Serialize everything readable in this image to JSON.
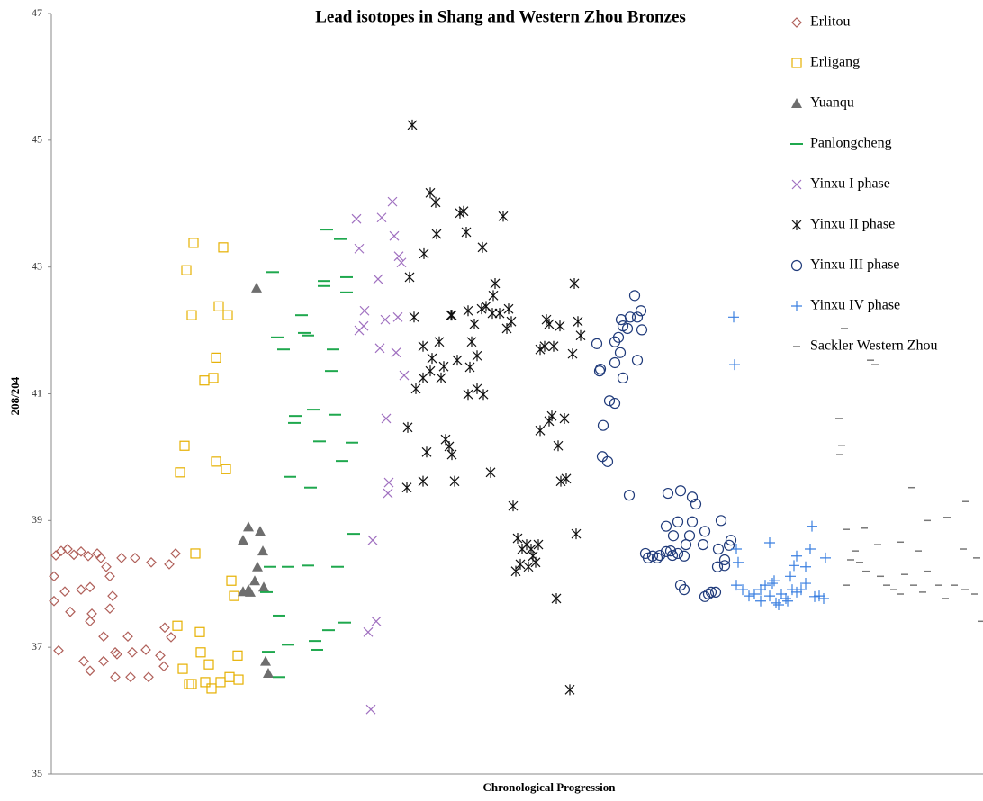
{
  "chart_data": {
    "type": "scatter",
    "title": "Lead isotopes in Shang  and Western Zhou  Bronzes",
    "x_label": "Chronological Progression",
    "y_label": "208/204",
    "xlim": [
      0,
      1035
    ],
    "ylim": [
      35,
      47
    ],
    "yticks": [
      35,
      37,
      39,
      41,
      43,
      45,
      47
    ],
    "grid": false,
    "legend": "upper right",
    "series": [
      {
        "name": "Erlitou",
        "color": "#b0605a",
        "marker": "diamond",
        "x": [
          5,
          11,
          18,
          25,
          33,
          41,
          51,
          55,
          61,
          65,
          78,
          93,
          111,
          131,
          138,
          3,
          15,
          33,
          43,
          45,
          43,
          68,
          65,
          21,
          3,
          8,
          36,
          58,
          73,
          85,
          71,
          90,
          105,
          121,
          126,
          133,
          58,
          71,
          88,
          108,
          125,
          43
        ],
        "values": [
          38.45,
          38.52,
          38.55,
          38.46,
          38.51,
          38.44,
          38.48,
          38.41,
          38.27,
          38.12,
          38.41,
          38.41,
          38.34,
          38.31,
          38.48,
          37.73,
          37.88,
          37.91,
          37.95,
          37.53,
          37.41,
          37.81,
          37.61,
          37.56,
          38.12,
          36.95,
          36.78,
          36.78,
          36.89,
          37.17,
          36.92,
          36.92,
          36.96,
          36.87,
          37.31,
          37.16,
          37.17,
          36.53,
          36.53,
          36.53,
          36.7,
          36.63
        ]
      },
      {
        "name": "Erligang",
        "color": "#e6b000",
        "marker": "square",
        "x": [
          158,
          150,
          191,
          156,
          186,
          196,
          183,
          170,
          180,
          148,
          143,
          183,
          194,
          160,
          200,
          203,
          140,
          165,
          166,
          146,
          153,
          156,
          175,
          178,
          171,
          188,
          198,
          207,
          208
        ],
        "values": [
          43.38,
          42.95,
          43.31,
          42.24,
          42.38,
          42.24,
          41.57,
          41.21,
          41.25,
          40.18,
          39.76,
          39.93,
          39.81,
          38.48,
          38.05,
          37.81,
          37.34,
          37.24,
          36.92,
          36.66,
          36.42,
          36.42,
          36.73,
          36.35,
          36.45,
          36.45,
          36.53,
          36.87,
          36.49
        ]
      },
      {
        "name": "Yuanqu",
        "color": "#6e6e6e",
        "marker": "triangle",
        "x": [
          228,
          232,
          219,
          213,
          235,
          229,
          226,
          219,
          236,
          213,
          221,
          238,
          241
        ],
        "values": [
          42.67,
          38.83,
          38.9,
          38.69,
          38.52,
          38.27,
          38.05,
          37.91,
          37.95,
          37.88,
          37.87,
          36.78,
          36.59
        ]
      },
      {
        "name": "Panlongcheng",
        "color": "#1fa84e",
        "marker": "dash",
        "x": [
          246,
          306,
          321,
          303,
          328,
          303,
          328,
          278,
          281,
          285,
          251,
          258,
          313,
          311,
          271,
          291,
          315,
          270,
          298,
          334,
          323,
          265,
          288,
          336,
          263,
          285,
          318,
          243,
          239,
          253,
          263,
          293,
          326,
          308,
          241,
          295,
          253
        ],
        "values": [
          42.92,
          43.59,
          43.44,
          42.78,
          42.84,
          42.7,
          42.6,
          42.24,
          41.96,
          41.92,
          41.89,
          41.7,
          41.7,
          41.36,
          40.65,
          40.75,
          40.67,
          40.54,
          40.25,
          40.23,
          39.94,
          39.69,
          39.52,
          38.79,
          38.27,
          38.29,
          38.27,
          38.27,
          37.87,
          37.5,
          37.04,
          37.1,
          37.39,
          37.27,
          36.93,
          36.96,
          36.53
        ]
      },
      {
        "name": "Yinxu I phase",
        "color": "#a070c0",
        "marker": "x",
        "x": [
          339,
          367,
          379,
          342,
          381,
          386,
          389,
          363,
          348,
          342,
          371,
          385,
          347,
          365,
          383,
          392,
          372,
          375,
          374,
          357,
          361,
          352,
          355
        ],
        "values": [
          43.76,
          43.78,
          44.03,
          43.29,
          43.49,
          43.17,
          43.07,
          42.81,
          42.31,
          42.0,
          42.17,
          42.21,
          42.07,
          41.72,
          41.65,
          41.29,
          40.61,
          39.6,
          39.43,
          38.69,
          37.41,
          37.24,
          36.02
        ]
      },
      {
        "name": "Yinxu II phase",
        "color": "#111111",
        "marker": "asterisk",
        "x": [
          401,
          421,
          427,
          458,
          454,
          428,
          461,
          502,
          479,
          414,
          398,
          493,
          403,
          444,
          413,
          423,
          431,
          413,
          405,
          421,
          433,
          445,
          463,
          478,
          483,
          491,
          490,
          498,
          508,
          470,
          451,
          465,
          473,
          467,
          473,
          463,
          436,
          396,
          417,
          438,
          442,
          445,
          413,
          448,
          488,
          395,
          513,
          518,
          523,
          528,
          533,
          538,
          521,
          516,
          530,
          535,
          541,
          553,
          550,
          565,
          558,
          548,
          543,
          579,
          585,
          588,
          581,
          556,
          553,
          570,
          543,
          563,
          566,
          572,
          583,
          561,
          576,
          506,
          511,
          480
        ],
        "values": [
          45.24,
          44.17,
          44.02,
          43.88,
          43.85,
          43.52,
          43.55,
          43.8,
          43.31,
          43.21,
          42.84,
          42.74,
          42.21,
          42.24,
          41.75,
          41.56,
          41.82,
          41.25,
          41.08,
          41.36,
          41.25,
          42.24,
          42.31,
          42.34,
          42.38,
          42.55,
          42.27,
          42.27,
          42.34,
          42.1,
          41.53,
          41.42,
          41.6,
          41.82,
          41.08,
          40.99,
          41.43,
          40.47,
          40.08,
          40.28,
          40.17,
          40.04,
          39.62,
          39.62,
          39.76,
          39.52,
          39.23,
          38.72,
          38.55,
          38.62,
          38.55,
          38.34,
          38.31,
          38.2,
          38.27,
          38.44,
          38.62,
          42.1,
          42.17,
          42.07,
          41.75,
          41.75,
          41.7,
          41.63,
          42.14,
          41.92,
          42.74,
          40.65,
          40.57,
          40.61,
          40.42,
          40.18,
          39.62,
          39.66,
          38.79,
          37.77,
          36.33,
          42.03,
          42.14,
          40.99
        ]
      },
      {
        "name": "Yinxu III phase",
        "color": "#1f3a7a",
        "marker": "circle",
        "x": [
          648,
          655,
          643,
          651,
          633,
          656,
          635,
          640,
          630,
          626,
          606,
          632,
          651,
          610,
          609,
          626,
          635,
          620,
          626,
          613,
          612,
          618,
          642,
          685,
          699,
          712,
          716,
          683,
          696,
          712,
          744,
          691,
          709,
          726,
          705,
          724,
          755,
          753,
          741,
          748,
          748,
          740,
          660,
          668,
          676,
          683,
          688,
          696,
          703,
          663,
          673,
          690,
          699,
          703,
          730,
          733,
          738,
          726
        ],
        "values": [
          42.55,
          42.31,
          42.21,
          42.21,
          42.17,
          42.01,
          42.07,
          42.03,
          41.89,
          41.82,
          41.79,
          41.65,
          41.53,
          41.39,
          41.36,
          41.49,
          41.25,
          40.89,
          40.85,
          40.5,
          40.01,
          39.93,
          39.4,
          39.43,
          39.47,
          39.37,
          39.26,
          38.91,
          38.98,
          38.98,
          39.0,
          38.76,
          38.76,
          38.83,
          38.62,
          38.62,
          38.69,
          38.61,
          38.55,
          38.38,
          38.29,
          38.27,
          38.48,
          38.44,
          38.45,
          38.51,
          38.52,
          38.48,
          38.44,
          38.41,
          38.41,
          38.45,
          37.98,
          37.91,
          37.84,
          37.87,
          37.87,
          37.8
        ]
      },
      {
        "name": "Yinxu IV phase",
        "color": "#3a7fe0",
        "marker": "plus",
        "x": [
          758,
          759,
          761,
          763,
          798,
          761,
          768,
          775,
          781,
          788,
          793,
          801,
          803,
          788,
          798,
          805,
          811,
          816,
          823,
          828,
          821,
          825,
          828,
          838,
          843,
          845,
          833,
          838,
          848,
          853,
          858,
          860,
          808,
          818
        ],
        "values": [
          42.21,
          41.46,
          38.55,
          38.34,
          38.65,
          37.98,
          37.91,
          37.81,
          37.84,
          37.91,
          37.98,
          38.01,
          38.05,
          37.73,
          37.81,
          37.7,
          37.84,
          37.77,
          37.91,
          37.87,
          38.12,
          38.29,
          38.44,
          38.27,
          38.55,
          38.91,
          37.91,
          38.01,
          37.8,
          37.81,
          37.77,
          38.41,
          37.67,
          37.73
        ]
      },
      {
        "name": "Sackler Western Zhou",
        "color": "#777777",
        "marker": "dash-small",
        "x": [
          881,
          910,
          915,
          875,
          878,
          876,
          956,
          883,
          903,
          973,
          995,
          1016,
          918,
          943,
          893,
          898,
          905,
          921,
          928,
          936,
          948,
          958,
          973,
          986,
          1003,
          1015,
          1026,
          1033,
          1028,
          888,
          883,
          993,
          1013,
          963,
          943,
          968
        ],
        "values": [
          42.03,
          41.53,
          41.46,
          40.61,
          40.18,
          40.04,
          39.52,
          38.86,
          38.88,
          39.0,
          39.05,
          39.3,
          38.62,
          38.66,
          38.52,
          38.34,
          38.2,
          38.12,
          37.98,
          37.91,
          38.15,
          37.98,
          38.2,
          37.98,
          37.98,
          37.91,
          37.84,
          37.41,
          38.41,
          38.38,
          37.98,
          37.77,
          38.55,
          38.52,
          37.84,
          37.87
        ]
      }
    ]
  }
}
